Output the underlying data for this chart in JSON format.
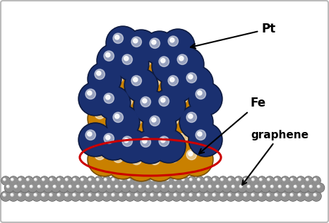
{
  "bg_color": "#ffffff",
  "border_color": "#bbbbbb",
  "pt_color": "#1a3070",
  "pt_dark": "#0d1a40",
  "fe_color": "#c98000",
  "fe_dark": "#7a4e00",
  "gr_color": "#909090",
  "gr_dark": "#505050",
  "ellipse_color": "#cc0000",
  "annotation_pt": "Pt",
  "annotation_fe": "Fe",
  "annotation_graphene": "graphene",
  "fig_width": 4.66,
  "fig_height": 3.16,
  "dpi": 100
}
